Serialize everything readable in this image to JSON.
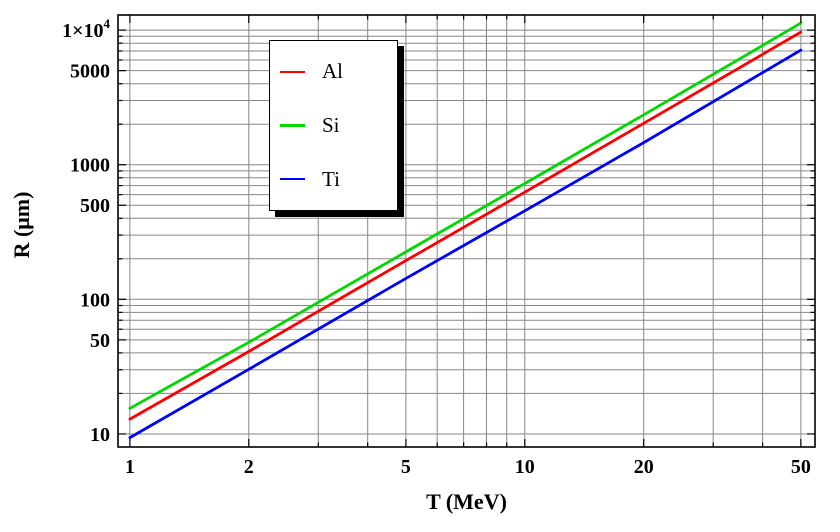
{
  "window": {
    "background": "#ffffff"
  },
  "chart_data": {
    "type": "line",
    "title": "",
    "xlabel": "T (MeV)",
    "ylabel": "R (μm)",
    "x_scale": "log",
    "y_scale": "log",
    "xlim": [
      0.933,
      54.3
    ],
    "ylim": [
      8.0,
      12950
    ],
    "grid": true,
    "grid_color": "#878787",
    "frame_color": "#000000",
    "x_ticks": [
      {
        "value": 1,
        "label": "1"
      },
      {
        "value": 2,
        "label": "2"
      },
      {
        "value": 5,
        "label": "5"
      },
      {
        "value": 10,
        "label": "10"
      },
      {
        "value": 20,
        "label": "20"
      },
      {
        "value": 50,
        "label": "50"
      }
    ],
    "x_minor_ticks": [
      3,
      4,
      6,
      7,
      8,
      9,
      30,
      40
    ],
    "y_ticks": [
      {
        "value": 10,
        "label": "10"
      },
      {
        "value": 50,
        "label": "50"
      },
      {
        "value": 100,
        "label": "100"
      },
      {
        "value": 500,
        "label": "500"
      },
      {
        "value": 1000,
        "label": "1000"
      },
      {
        "value": 5000,
        "label": "5000"
      },
      {
        "value": 10000,
        "label": "1×10^4"
      }
    ],
    "y_minor_ticks": [
      20,
      30,
      40,
      60,
      70,
      80,
      90,
      200,
      300,
      400,
      600,
      700,
      800,
      900,
      2000,
      3000,
      4000,
      6000,
      7000,
      8000,
      9000
    ],
    "legend": {
      "position": "top-left-inside",
      "shadow": true
    },
    "series": [
      {
        "name": "Al",
        "color": "#ff0000",
        "points": [
          [
            1,
            12.9
          ],
          [
            2,
            41
          ],
          [
            5,
            194
          ],
          [
            10,
            625
          ],
          [
            20,
            2030
          ],
          [
            50,
            9670
          ]
        ]
      },
      {
        "name": "Si",
        "color": "#00d800",
        "points": [
          [
            1,
            15.5
          ],
          [
            2,
            48
          ],
          [
            5,
            225
          ],
          [
            10,
            725
          ],
          [
            20,
            2350
          ],
          [
            50,
            11270
          ]
        ]
      },
      {
        "name": "Ti",
        "color": "#0000ff",
        "points": [
          [
            1,
            9.4
          ],
          [
            2,
            30.2
          ],
          [
            5,
            143
          ],
          [
            10,
            455
          ],
          [
            20,
            1460
          ],
          [
            50,
            7110
          ]
        ]
      }
    ]
  }
}
